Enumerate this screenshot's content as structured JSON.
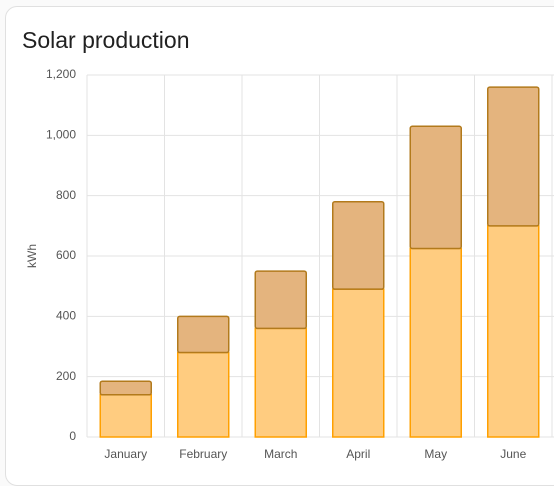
{
  "chart_data": {
    "type": "stacked-bar",
    "title": "Solar production",
    "y_label": "kWh",
    "categories": [
      "January",
      "February",
      "March",
      "April",
      "May",
      "June"
    ],
    "series": [
      {
        "color": "#ffcc80",
        "stroke": "#ffa000",
        "values": [
          140,
          280,
          360,
          490,
          625,
          700
        ]
      },
      {
        "color": "#e4b47e",
        "stroke": "#b27a1c",
        "values": [
          45,
          120,
          190,
          290,
          405,
          460
        ]
      }
    ],
    "ylim": [
      0,
      1200
    ],
    "yticks": [
      0,
      200,
      400,
      600,
      800,
      {
        "value": 1000,
        "label": "1,000"
      },
      {
        "value": 1200,
        "label": "1,200"
      }
    ],
    "grid": true
  }
}
